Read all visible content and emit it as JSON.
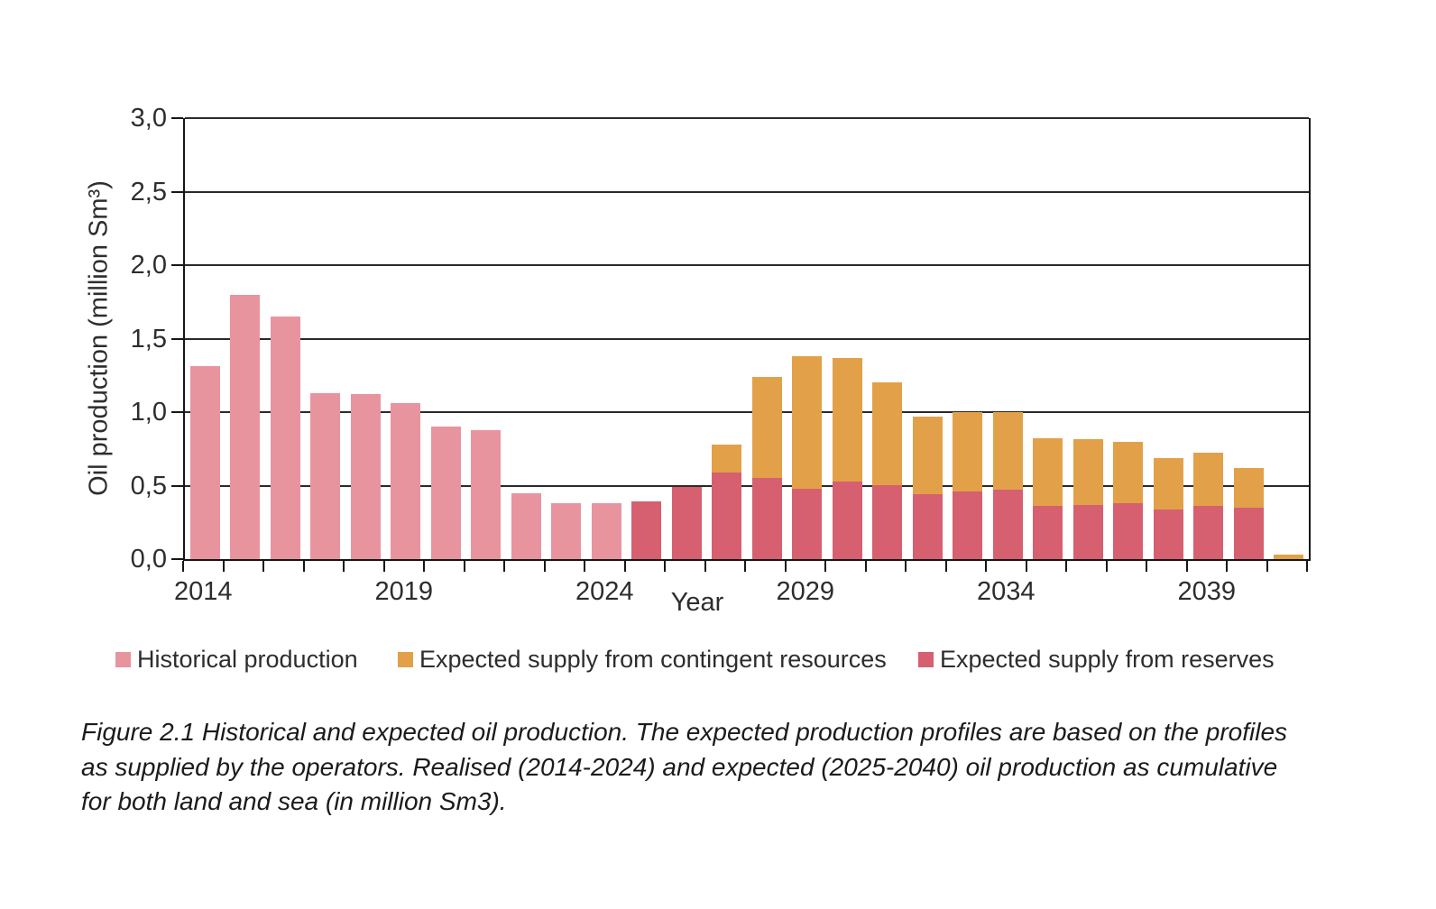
{
  "figure": {
    "caption": "Figure 2.1 Historical and expected oil production. The expected production profiles are based on the profiles as supplied by the operators. Realised (2014-2024) and expected (2025-2040) oil production as cumulative for both land and sea (in million Sm3)."
  },
  "chart_data": {
    "type": "bar",
    "stacked": true,
    "xlabel": "Year",
    "ylabel": "Oil production (million Sm³)",
    "ylim": [
      0,
      3.0
    ],
    "ytick_step": 0.5,
    "ytick_labels": [
      "0,0",
      "0,5",
      "1,0",
      "1,5",
      "2,0",
      "2,5",
      "3,0"
    ],
    "xtick_labels": [
      "2014",
      "2019",
      "2024",
      "2029",
      "2034",
      "2039"
    ],
    "grid": "horizontal",
    "legend_position": "bottom",
    "x": [
      2014,
      2015,
      2016,
      2017,
      2018,
      2019,
      2020,
      2021,
      2022,
      2023,
      2024,
      2025,
      2026,
      2027,
      2028,
      2029,
      2030,
      2031,
      2032,
      2033,
      2034,
      2035,
      2036,
      2037,
      2038,
      2039,
      2040,
      2041
    ],
    "series": [
      {
        "name": "Historical production",
        "color": "#E8949F",
        "values": [
          1.31,
          1.8,
          1.65,
          1.13,
          1.12,
          1.06,
          0.9,
          0.88,
          0.45,
          0.38,
          0.38,
          0,
          0,
          0,
          0,
          0,
          0,
          0,
          0,
          0,
          0,
          0,
          0,
          0,
          0,
          0,
          0,
          0
        ]
      },
      {
        "name": "Expected supply from reserves",
        "color": "#D65F70",
        "values": [
          0,
          0,
          0,
          0,
          0,
          0,
          0,
          0,
          0,
          0,
          0,
          0.39,
          0.49,
          0.59,
          0.55,
          0.48,
          0.53,
          0.5,
          0.44,
          0.46,
          0.47,
          0.36,
          0.37,
          0.38,
          0.34,
          0.36,
          0.35,
          0
        ]
      },
      {
        "name": "Expected supply from contingent resources",
        "color": "#E2A149",
        "values": [
          0,
          0,
          0,
          0,
          0,
          0,
          0,
          0,
          0,
          0,
          0,
          0,
          0,
          0.19,
          0.69,
          0.9,
          0.84,
          0.7,
          0.53,
          0.54,
          0.53,
          0.46,
          0.45,
          0.42,
          0.35,
          0.36,
          0.27,
          0.03
        ]
      }
    ],
    "legend_series_order": [
      0,
      2,
      1
    ],
    "axis_color": "#161616",
    "gridline_color": "#2a2a2a"
  }
}
